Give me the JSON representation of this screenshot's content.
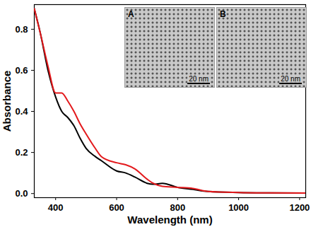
{
  "chart_data": {
    "type": "line",
    "x_label": "Wavelength (nm)",
    "y_label": "Absorbance",
    "x": [
      330,
      350,
      375,
      400,
      420,
      440,
      460,
      480,
      500,
      530,
      550,
      600,
      630,
      660,
      700,
      720,
      750,
      800,
      850,
      900,
      1000,
      1100,
      1220
    ],
    "series": [
      {
        "color": "#000000",
        "values": [
          0.9,
          0.78,
          0.6,
          0.47,
          0.4,
          0.37,
          0.33,
          0.27,
          0.22,
          0.18,
          0.16,
          0.11,
          0.1,
          0.08,
          0.05,
          0.045,
          0.05,
          0.03,
          0.02,
          0.01,
          0.005,
          0.003,
          0.002
        ]
      },
      {
        "color": "#e3191c",
        "values": [
          0.9,
          0.78,
          0.62,
          0.49,
          0.49,
          0.45,
          0.4,
          0.34,
          0.29,
          0.22,
          0.18,
          0.15,
          0.14,
          0.12,
          0.07,
          0.05,
          0.035,
          0.03,
          0.025,
          0.01,
          0.005,
          0.003,
          0.002
        ]
      }
    ],
    "xlim": [
      330,
      1220
    ],
    "ylim": [
      -0.02,
      0.92
    ],
    "xticks": [
      400,
      600,
      800,
      1000,
      1200
    ],
    "yticks": [
      {
        "value": 0,
        "label": "0.0"
      },
      0.2,
      0.4,
      0.6,
      0.8
    ],
    "insets": [
      {
        "label": "A",
        "scale_bar": "20 nm"
      },
      {
        "label": "B",
        "scale_bar": "20 nm"
      }
    ]
  }
}
